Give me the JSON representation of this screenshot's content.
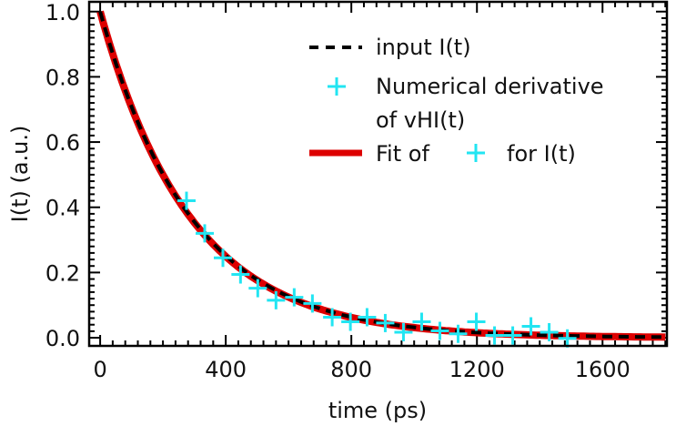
{
  "chart_data": {
    "type": "line",
    "title": "",
    "xlabel": "time (ps)",
    "ylabel": "I(t) (a.u.)",
    "xlim": [
      -35,
      1805
    ],
    "ylim": [
      -0.025,
      1.03
    ],
    "xticks": [
      0,
      400,
      800,
      1200,
      1600
    ],
    "xtick_labels": [
      "0",
      "400",
      "800",
      "1200",
      "1600"
    ],
    "yticks": [
      0.0,
      0.2,
      0.4,
      0.6,
      0.8,
      1.0
    ],
    "ytick_labels": [
      "0.0",
      "0.2",
      "0.4",
      "0.6",
      "0.8",
      "1.0"
    ],
    "x_minor_step": 40,
    "y_minor_step": 0.02,
    "grid": false,
    "legend_position": "top-right",
    "colors": {
      "input": "#000000",
      "points": "#22e5f2",
      "fit": "#dd0000"
    },
    "series": [
      {
        "name": "input I(t)",
        "style": "dashed",
        "decay_time_ps": 290,
        "x_range": [
          0,
          1800
        ]
      },
      {
        "name": "Fit of + for I(t)",
        "style": "solid",
        "decay_time_ps": 288,
        "x_range": [
          0,
          1800
        ]
      },
      {
        "name": "Numerical derivative of vHI(t)",
        "style": "markers",
        "x": [
          275,
          333,
          391,
          447,
          502,
          560,
          618,
          676,
          739,
          797,
          850,
          908,
          966,
          1024,
          1082,
          1140,
          1198,
          1256,
          1314,
          1372,
          1430,
          1488
        ],
        "y": [
          0.42,
          0.32,
          0.245,
          0.194,
          0.152,
          0.115,
          0.124,
          0.105,
          0.063,
          0.049,
          0.063,
          0.045,
          0.017,
          0.049,
          0.021,
          0.012,
          0.049,
          0.007,
          0.007,
          0.035,
          0.017,
          -0.002
        ]
      }
    ],
    "legend": {
      "input": "input I(t)",
      "points_line1": "Numerical derivative",
      "points_line2": "of vHI(t)",
      "fit_prefix": "Fit of",
      "fit_suffix": "for I(t)"
    }
  }
}
